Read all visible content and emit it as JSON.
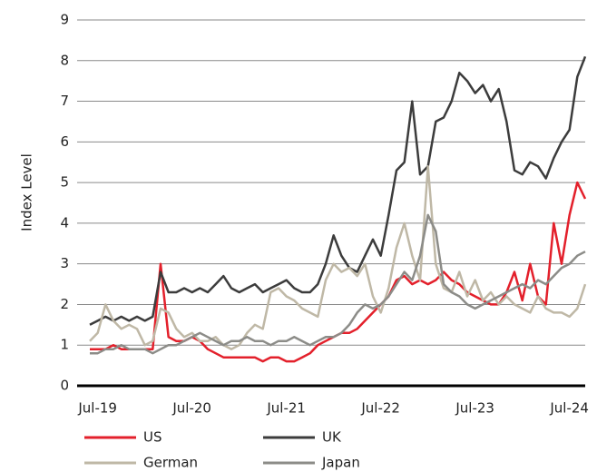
{
  "chart_data": {
    "type": "line",
    "y_label": "Index Level",
    "x": [
      "2019-06",
      "2019-07",
      "2019-08",
      "2019-09",
      "2019-10",
      "2019-11",
      "2019-12",
      "2020-01",
      "2020-02",
      "2020-03",
      "2020-04",
      "2020-05",
      "2020-06",
      "2020-07",
      "2020-08",
      "2020-09",
      "2020-10",
      "2020-11",
      "2020-12",
      "2021-01",
      "2021-02",
      "2021-03",
      "2021-04",
      "2021-05",
      "2021-06",
      "2021-07",
      "2021-08",
      "2021-09",
      "2021-10",
      "2021-11",
      "2021-12",
      "2022-01",
      "2022-02",
      "2022-03",
      "2022-04",
      "2022-05",
      "2022-06",
      "2022-07",
      "2022-08",
      "2022-09",
      "2022-10",
      "2022-11",
      "2022-12",
      "2023-01",
      "2023-02",
      "2023-03",
      "2023-04",
      "2023-05",
      "2023-06",
      "2023-07",
      "2023-08",
      "2023-09",
      "2023-10",
      "2023-11",
      "2023-12",
      "2024-01",
      "2024-02",
      "2024-03",
      "2024-04",
      "2024-05",
      "2024-06",
      "2024-07",
      "2024-08",
      "2024-09"
    ],
    "series": [
      {
        "name": "US",
        "color": "#e3202b",
        "values": [
          0.9,
          0.9,
          0.9,
          1.0,
          0.9,
          0.9,
          0.9,
          0.9,
          0.9,
          3.0,
          1.2,
          1.1,
          1.1,
          1.2,
          1.1,
          0.9,
          0.8,
          0.7,
          0.7,
          0.7,
          0.7,
          0.7,
          0.6,
          0.7,
          0.7,
          0.6,
          0.6,
          0.7,
          0.8,
          1.0,
          1.1,
          1.2,
          1.3,
          1.3,
          1.4,
          1.6,
          1.8,
          2.0,
          2.2,
          2.6,
          2.7,
          2.5,
          2.6,
          2.5,
          2.6,
          2.8,
          2.6,
          2.5,
          2.3,
          2.2,
          2.1,
          2.0,
          2.0,
          2.3,
          2.8,
          2.1,
          3.0,
          2.2,
          2.0,
          4.0,
          3.0,
          4.2,
          5.0,
          4.6
        ]
      },
      {
        "name": "UK",
        "color": "#3c3c3c",
        "values": [
          1.5,
          1.6,
          1.7,
          1.6,
          1.7,
          1.6,
          1.7,
          1.6,
          1.7,
          2.8,
          2.3,
          2.3,
          2.4,
          2.3,
          2.4,
          2.3,
          2.5,
          2.7,
          2.4,
          2.3,
          2.4,
          2.5,
          2.3,
          2.4,
          2.5,
          2.6,
          2.4,
          2.3,
          2.3,
          2.5,
          3.0,
          3.7,
          3.2,
          2.9,
          2.8,
          3.2,
          3.6,
          3.2,
          4.2,
          5.3,
          5.5,
          7.0,
          5.2,
          5.4,
          6.5,
          6.6,
          7.0,
          7.7,
          7.5,
          7.2,
          7.4,
          7.0,
          7.3,
          6.5,
          5.3,
          5.2,
          5.5,
          5.4,
          5.1,
          5.6,
          6.0,
          6.3,
          7.6,
          8.1
        ]
      },
      {
        "name": "German",
        "color": "#bfb8a6",
        "values": [
          1.1,
          1.3,
          2.0,
          1.6,
          1.4,
          1.5,
          1.4,
          1.0,
          1.1,
          1.9,
          1.8,
          1.4,
          1.2,
          1.3,
          1.1,
          1.1,
          1.2,
          1.0,
          0.9,
          1.0,
          1.3,
          1.5,
          1.4,
          2.3,
          2.4,
          2.2,
          2.1,
          1.9,
          1.8,
          1.7,
          2.6,
          3.0,
          2.8,
          2.9,
          2.7,
          3.0,
          2.2,
          1.8,
          2.4,
          3.4,
          4.0,
          3.2,
          2.6,
          5.4,
          3.0,
          2.4,
          2.3,
          2.8,
          2.2,
          2.6,
          2.1,
          2.3,
          2.0,
          2.2,
          2.0,
          1.9,
          1.8,
          2.2,
          1.9,
          1.8,
          1.8,
          1.7,
          1.9,
          2.5
        ]
      },
      {
        "name": "Japan",
        "color": "#8c8c88",
        "values": [
          0.8,
          0.8,
          0.9,
          0.9,
          1.0,
          0.9,
          0.9,
          0.9,
          0.8,
          0.9,
          1.0,
          1.0,
          1.1,
          1.2,
          1.3,
          1.2,
          1.1,
          1.0,
          1.1,
          1.1,
          1.2,
          1.1,
          1.1,
          1.0,
          1.1,
          1.1,
          1.2,
          1.1,
          1.0,
          1.1,
          1.2,
          1.2,
          1.3,
          1.5,
          1.8,
          2.0,
          1.9,
          2.0,
          2.2,
          2.5,
          2.8,
          2.6,
          3.2,
          4.2,
          3.8,
          2.5,
          2.3,
          2.2,
          2.0,
          1.9,
          2.0,
          2.1,
          2.2,
          2.3,
          2.4,
          2.5,
          2.4,
          2.6,
          2.5,
          2.7,
          2.9,
          3.0,
          3.2,
          3.3
        ]
      }
    ],
    "xlim": [
      "2019-06",
      "2024-09"
    ],
    "xticks": [
      {
        "value": "2019-07",
        "label": "Jul-19"
      },
      {
        "value": "2020-07",
        "label": "Jul-20"
      },
      {
        "value": "2021-07",
        "label": "Jul-21"
      },
      {
        "value": "2022-07",
        "label": "Jul-22"
      },
      {
        "value": "2023-07",
        "label": "Jul-23"
      },
      {
        "value": "2024-07",
        "label": "Jul-24"
      }
    ],
    "ylim": [
      0,
      9
    ],
    "yticks": [
      0,
      1,
      2,
      3,
      4,
      5,
      6,
      7,
      8,
      9
    ],
    "grid": true,
    "legend": "bottom"
  }
}
